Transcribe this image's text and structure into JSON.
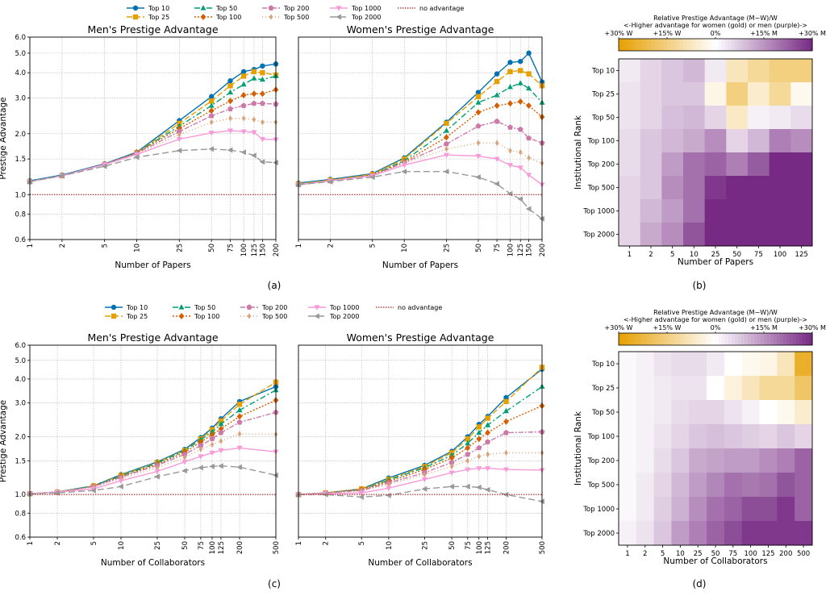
{
  "legend": {
    "entries": [
      "Top 10",
      "Top 25",
      "Top 50",
      "Top 100",
      "Top 200",
      "Top 500",
      "Top 1000",
      "Top 2000",
      "no advantage"
    ]
  },
  "series_styles": [
    {
      "name": "Top 10",
      "color": "#0072b2",
      "dash": "",
      "marker": "circle"
    },
    {
      "name": "Top 25",
      "color": "#e69f00",
      "dash": "7,3",
      "marker": "square"
    },
    {
      "name": "Top 50",
      "color": "#009e73",
      "dash": "7,3,2,3",
      "marker": "triangle"
    },
    {
      "name": "Top 100",
      "color": "#d55e00",
      "dash": "2,2",
      "marker": "diamond"
    },
    {
      "name": "Top 200",
      "color": "#cc79a7",
      "dash": "6,2,2,2",
      "marker": "pentagon"
    },
    {
      "name": "Top 500",
      "color": "#d9a37a",
      "dash": "1,3",
      "marker": "thin_diamond"
    },
    {
      "name": "Top 1000",
      "color": "#f89ad8",
      "dash": "",
      "marker": "tri_down"
    },
    {
      "name": "Top 2000",
      "color": "#999999",
      "dash": "8,4",
      "marker": "tri_left"
    }
  ],
  "reference_line": {
    "label": "no advantage",
    "value": 1.0,
    "color": "#b22222"
  },
  "captions": [
    "(a)",
    "(b)",
    "(c)",
    "(d)"
  ],
  "chart_data": [
    {
      "type": "line",
      "panel": "a-left",
      "title": "Men's Prestige Advantage",
      "xlabel": "Number of Papers",
      "ylabel": "Prestige Advantage",
      "yscale": "log",
      "xscale": "log",
      "ylim": [
        0.6,
        6.0
      ],
      "grid": true,
      "x": [
        1,
        2,
        5,
        10,
        25,
        50,
        75,
        100,
        125,
        150,
        200
      ],
      "xtick_labels": [
        "1",
        "2",
        "5",
        "10",
        "25",
        "50",
        "75",
        "100",
        "125",
        "150",
        "200"
      ],
      "ytick_labels": [
        "0.6",
        "0.8",
        "1.0",
        "1.5",
        "2.0",
        "3.0",
        "4.0",
        "5.0",
        "6.0"
      ],
      "series": [
        {
          "name": "Top 10",
          "values": [
            1.17,
            1.25,
            1.42,
            1.62,
            2.32,
            3.05,
            3.65,
            4.05,
            4.15,
            4.32,
            4.42
          ]
        },
        {
          "name": "Top 25",
          "values": [
            1.16,
            1.24,
            1.41,
            1.61,
            2.25,
            2.9,
            3.45,
            3.85,
            4.05,
            4.0,
            3.9
          ]
        },
        {
          "name": "Top 50",
          "values": [
            1.16,
            1.24,
            1.41,
            1.61,
            2.18,
            2.75,
            3.2,
            3.5,
            3.75,
            3.7,
            3.85
          ]
        },
        {
          "name": "Top 100",
          "values": [
            1.16,
            1.24,
            1.41,
            1.61,
            2.12,
            2.6,
            2.9,
            3.1,
            3.15,
            3.15,
            3.3
          ]
        },
        {
          "name": "Top 200",
          "values": [
            1.16,
            1.24,
            1.41,
            1.6,
            2.05,
            2.45,
            2.65,
            2.75,
            2.82,
            2.82,
            2.8
          ]
        },
        {
          "name": "Top 500",
          "values": [
            1.16,
            1.24,
            1.4,
            1.58,
            1.98,
            2.28,
            2.38,
            2.38,
            2.35,
            2.28,
            2.28
          ]
        },
        {
          "name": "Top 1000",
          "values": [
            1.16,
            1.24,
            1.41,
            1.58,
            1.88,
            2.02,
            2.07,
            2.05,
            2.03,
            1.88,
            1.87
          ]
        },
        {
          "name": "Top 2000",
          "values": [
            1.16,
            1.24,
            1.38,
            1.53,
            1.65,
            1.68,
            1.66,
            1.62,
            1.56,
            1.45,
            1.44
          ]
        }
      ]
    },
    {
      "type": "line",
      "panel": "a-right",
      "title": "Women's Prestige Advantage",
      "xlabel": "Number of Papers",
      "ylabel": "Prestige Advantage",
      "yscale": "log",
      "xscale": "log",
      "ylim": [
        0.6,
        6.0
      ],
      "grid": true,
      "x": [
        1,
        2,
        5,
        10,
        25,
        50,
        75,
        100,
        125,
        150,
        200
      ],
      "xtick_labels": [
        "1",
        "2",
        "5",
        "10",
        "25",
        "50",
        "75",
        "100",
        "125",
        "150",
        "200"
      ],
      "ytick_labels": [
        "0.6",
        "0.8",
        "1.0",
        "1.5",
        "2.0",
        "3.0",
        "4.0",
        "5.0",
        "6.0"
      ],
      "series": [
        {
          "name": "Top 10",
          "values": [
            1.14,
            1.19,
            1.27,
            1.52,
            2.28,
            3.2,
            3.95,
            4.5,
            4.55,
            5.0,
            3.6
          ]
        },
        {
          "name": "Top 25",
          "values": [
            1.13,
            1.18,
            1.26,
            1.5,
            2.25,
            3.05,
            3.62,
            4.05,
            4.1,
            3.95,
            3.45
          ]
        },
        {
          "name": "Top 50",
          "values": [
            1.12,
            1.17,
            1.25,
            1.47,
            2.07,
            2.85,
            3.1,
            3.4,
            3.55,
            3.35,
            2.85
          ]
        },
        {
          "name": "Top 100",
          "values": [
            1.12,
            1.17,
            1.25,
            1.45,
            1.92,
            2.55,
            2.75,
            2.82,
            2.88,
            2.75,
            2.42
          ]
        },
        {
          "name": "Top 200",
          "values": [
            1.12,
            1.17,
            1.24,
            1.44,
            1.78,
            2.18,
            2.3,
            2.15,
            2.1,
            1.9,
            1.8
          ]
        },
        {
          "name": "Top 500",
          "values": [
            1.12,
            1.17,
            1.24,
            1.43,
            1.68,
            1.8,
            1.8,
            1.65,
            1.62,
            1.52,
            1.43
          ]
        },
        {
          "name": "Top 1000",
          "values": [
            1.12,
            1.17,
            1.24,
            1.4,
            1.57,
            1.55,
            1.5,
            1.4,
            1.36,
            1.25,
            1.12
          ]
        },
        {
          "name": "Top 2000",
          "values": [
            1.12,
            1.16,
            1.22,
            1.3,
            1.3,
            1.22,
            1.13,
            1.01,
            0.95,
            0.85,
            0.76
          ]
        }
      ]
    },
    {
      "type": "heatmap",
      "panel": "b",
      "colorbar_title": "Relative Prestige Advantage (M−W)/W",
      "colorbar_subtitle": "<-Higher advantage for women (gold) or men (purple)->",
      "colorbar_ticks": [
        "+30% W",
        "+15% W",
        "0%",
        "+15% M",
        "+30% M"
      ],
      "xlabel": "Number of Papers",
      "ylabel": "Institutional Rank",
      "x": [
        "1",
        "2",
        "5",
        "10",
        "25",
        "50",
        "75",
        "100",
        "125"
      ],
      "y": [
        "Top 10",
        "Top 25",
        "Top 50",
        "Top 100",
        "Top 200",
        "Top 500",
        "Top 1000",
        "Top 2000"
      ],
      "values": [
        [
          3,
          6,
          8,
          10,
          3,
          -8,
          -12,
          -15,
          -15
        ],
        [
          4,
          6,
          8,
          8,
          -3,
          -15,
          -6,
          -12,
          -2
        ],
        [
          4,
          6,
          9,
          10,
          6,
          -7,
          2,
          3,
          5
        ],
        [
          5,
          8,
          10,
          12,
          16,
          6,
          10,
          18,
          16
        ],
        [
          5,
          8,
          14,
          20,
          22,
          18,
          23,
          30,
          30
        ],
        [
          6,
          8,
          16,
          20,
          28,
          30,
          30,
          30,
          30
        ],
        [
          6,
          10,
          14,
          20,
          30,
          30,
          30,
          30,
          30
        ],
        [
          6,
          12,
          16,
          24,
          30,
          30,
          30,
          30,
          30
        ]
      ]
    },
    {
      "type": "line",
      "panel": "c-left",
      "title": "Men's Prestige Advantage",
      "xlabel": "Number of Collaborators",
      "ylabel": "Prestige Advantage",
      "yscale": "log",
      "xscale": "log",
      "ylim": [
        0.6,
        6.0
      ],
      "grid": true,
      "x": [
        1,
        2,
        5,
        10,
        25,
        50,
        75,
        100,
        125,
        200,
        500
      ],
      "xtick_labels": [
        "1",
        "2",
        "5",
        "10",
        "25",
        "50",
        "75",
        "100",
        "125",
        "200",
        "500"
      ],
      "ytick_labels": [
        "0.6",
        "0.8",
        "1.0",
        "1.5",
        "2.0",
        "3.0",
        "4.0",
        "5.0",
        "6.0"
      ],
      "series": [
        {
          "name": "Top 10",
          "values": [
            1.01,
            1.03,
            1.11,
            1.27,
            1.48,
            1.72,
            1.98,
            2.22,
            2.48,
            3.05,
            3.65
          ]
        },
        {
          "name": "Top 25",
          "values": [
            1.01,
            1.03,
            1.11,
            1.26,
            1.47,
            1.7,
            1.95,
            2.18,
            2.42,
            2.95,
            3.85
          ]
        },
        {
          "name": "Top 50",
          "values": [
            1.01,
            1.03,
            1.11,
            1.25,
            1.46,
            1.69,
            1.93,
            2.12,
            2.33,
            2.75,
            3.5
          ]
        },
        {
          "name": "Top 100",
          "values": [
            1.01,
            1.03,
            1.1,
            1.24,
            1.44,
            1.66,
            1.88,
            2.05,
            2.2,
            2.55,
            3.1
          ]
        },
        {
          "name": "Top 200",
          "values": [
            1.01,
            1.03,
            1.1,
            1.23,
            1.42,
            1.62,
            1.8,
            1.95,
            2.1,
            2.38,
            2.68
          ]
        },
        {
          "name": "Top 500",
          "values": [
            1.01,
            1.03,
            1.09,
            1.21,
            1.38,
            1.56,
            1.72,
            1.82,
            1.9,
            2.07,
            2.06
          ]
        },
        {
          "name": "Top 1000",
          "values": [
            1.01,
            1.03,
            1.07,
            1.18,
            1.32,
            1.48,
            1.58,
            1.65,
            1.7,
            1.75,
            1.67
          ]
        },
        {
          "name": "Top 2000",
          "values": [
            1.01,
            1.02,
            1.05,
            1.1,
            1.24,
            1.33,
            1.38,
            1.4,
            1.41,
            1.39,
            1.26
          ]
        }
      ]
    },
    {
      "type": "line",
      "panel": "c-right",
      "title": "Women's Prestige Advantage",
      "xlabel": "Number of Collaborators",
      "ylabel": "Prestige Advantage",
      "yscale": "log",
      "xscale": "log",
      "ylim": [
        0.6,
        6.0
      ],
      "grid": true,
      "x": [
        1,
        2,
        5,
        10,
        25,
        50,
        75,
        100,
        125,
        200,
        500
      ],
      "xtick_labels": [
        "1",
        "2",
        "5",
        "10",
        "25",
        "50",
        "75",
        "100",
        "125",
        "200",
        "500"
      ],
      "ytick_labels": [
        "0.6",
        "0.8",
        "1.0",
        "1.5",
        "2.0",
        "3.0",
        "4.0",
        "5.0",
        "6.0"
      ],
      "series": [
        {
          "name": "Top 10",
          "values": [
            1.0,
            1.02,
            1.07,
            1.22,
            1.42,
            1.68,
            2.0,
            2.32,
            2.55,
            3.2,
            4.5
          ]
        },
        {
          "name": "Top 25",
          "values": [
            1.0,
            1.02,
            1.07,
            1.2,
            1.4,
            1.65,
            1.95,
            2.25,
            2.5,
            3.05,
            4.6
          ]
        },
        {
          "name": "Top 50",
          "values": [
            1.0,
            1.02,
            1.06,
            1.19,
            1.38,
            1.6,
            1.85,
            2.1,
            2.3,
            2.72,
            3.65
          ]
        },
        {
          "name": "Top 100",
          "values": [
            1.0,
            1.02,
            1.06,
            1.17,
            1.35,
            1.55,
            1.75,
            1.95,
            2.1,
            2.4,
            2.9
          ]
        },
        {
          "name": "Top 200",
          "values": [
            1.0,
            1.02,
            1.05,
            1.15,
            1.3,
            1.47,
            1.62,
            1.75,
            1.88,
            2.1,
            2.12
          ]
        },
        {
          "name": "Top 500",
          "values": [
            1.0,
            1.02,
            1.04,
            1.13,
            1.27,
            1.4,
            1.5,
            1.58,
            1.62,
            1.65,
            1.65
          ]
        },
        {
          "name": "Top 1000",
          "values": [
            1.0,
            1.01,
            1.02,
            1.08,
            1.2,
            1.3,
            1.35,
            1.37,
            1.37,
            1.35,
            1.34
          ]
        },
        {
          "name": "Top 2000",
          "values": [
            1.0,
            1.0,
            0.97,
            0.99,
            1.07,
            1.1,
            1.1,
            1.09,
            1.06,
            1.0,
            0.92
          ]
        }
      ]
    },
    {
      "type": "heatmap",
      "panel": "d",
      "colorbar_title": "Relative Prestige Advantage (M−W)/W",
      "colorbar_subtitle": "<-Higher advantage for women (gold) or men (purple)->",
      "colorbar_ticks": [
        "+30% W",
        "+15% W",
        "0%",
        "+15% M",
        "+30% M"
      ],
      "xlabel": "Number of Collaborators",
      "ylabel": "Institutional Rank",
      "x": [
        "1",
        "2",
        "5",
        "10",
        "25",
        "50",
        "75",
        "100",
        "125",
        "200",
        "500"
      ],
      "y": [
        "Top 10",
        "Top 25",
        "Top 50",
        "Top 100",
        "Top 200",
        "Top 500",
        "Top 1000",
        "Top 2000"
      ],
      "values": [
        [
          1,
          2,
          4,
          5,
          5,
          3,
          0,
          -2,
          -3,
          -8,
          -25
        ],
        [
          1,
          2,
          3,
          4,
          4,
          0,
          -4,
          -8,
          -12,
          -12,
          -18
        ],
        [
          1,
          2,
          3,
          5,
          6,
          6,
          4,
          2,
          0,
          -2,
          -6
        ],
        [
          1,
          2,
          4,
          6,
          8,
          9,
          8,
          7,
          6,
          8,
          6
        ],
        [
          1,
          2,
          5,
          8,
          12,
          13,
          14,
          14,
          16,
          18,
          22
        ],
        [
          1,
          3,
          6,
          10,
          14,
          17,
          20,
          19,
          20,
          24,
          22
        ],
        [
          1,
          3,
          7,
          11,
          16,
          20,
          22,
          25,
          25,
          28,
          22
        ],
        [
          2,
          4,
          8,
          14,
          18,
          22,
          25,
          28,
          28,
          28,
          28
        ]
      ]
    }
  ]
}
